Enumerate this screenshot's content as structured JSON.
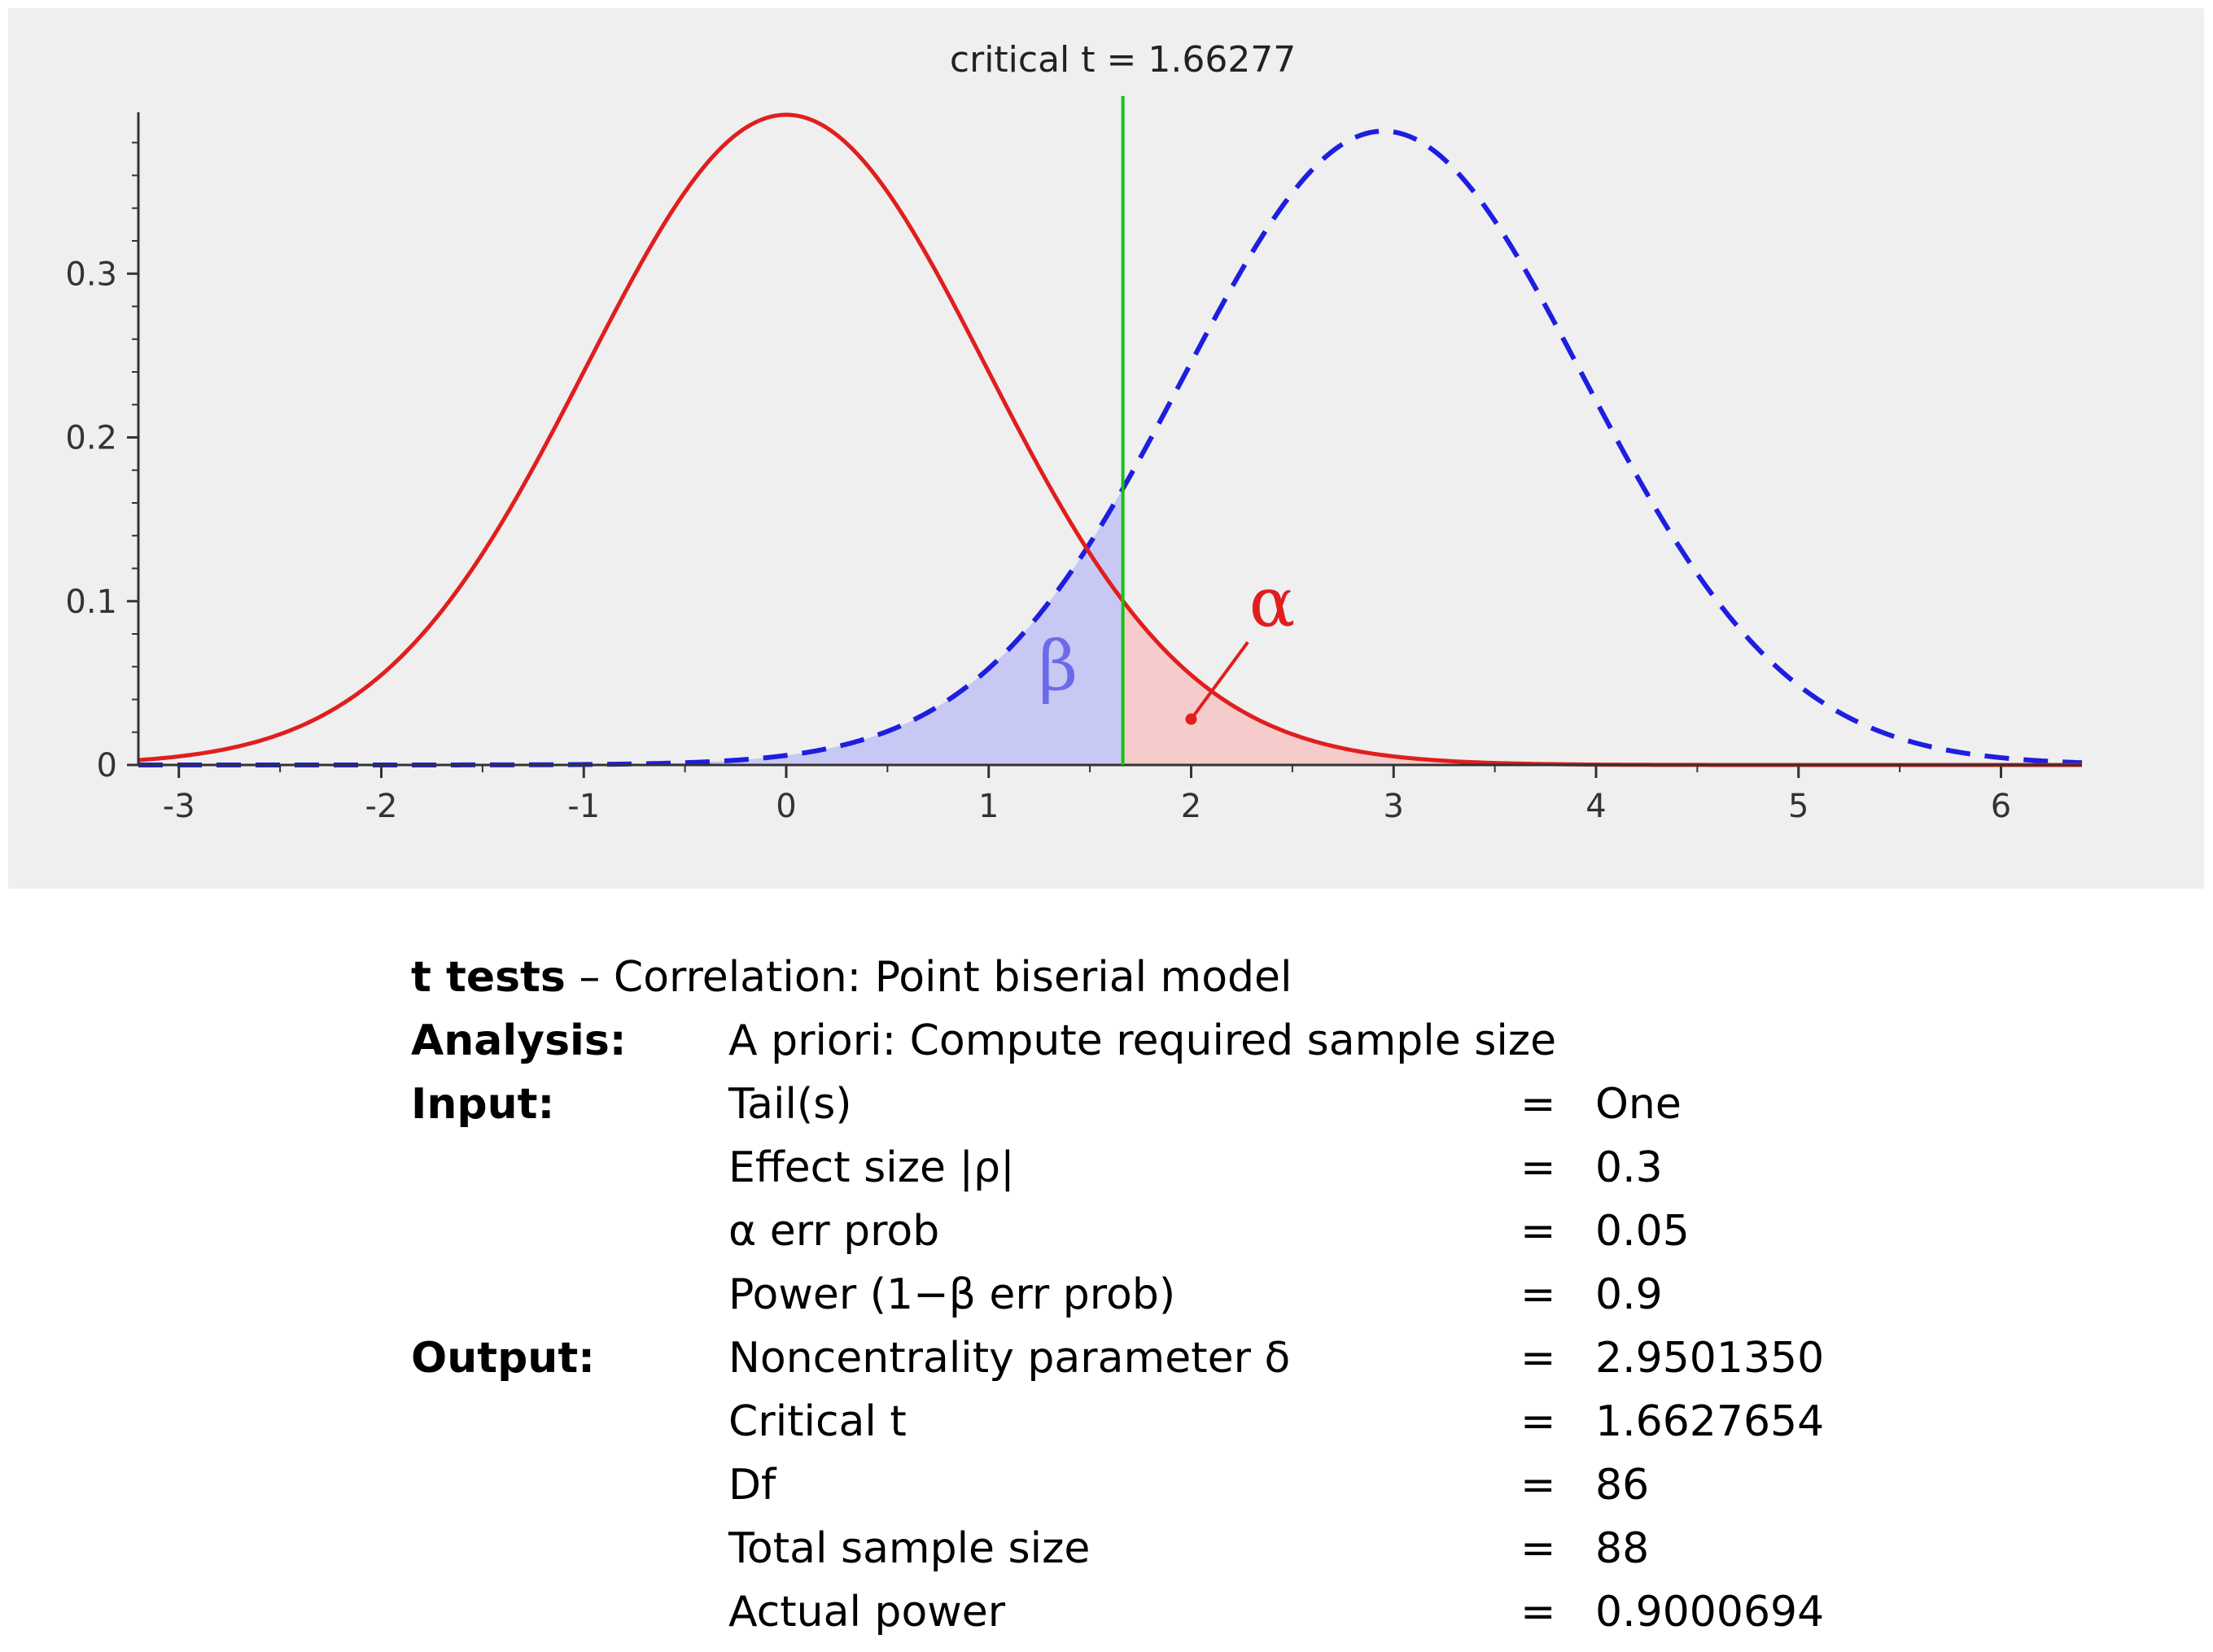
{
  "chart_data": {
    "type": "line",
    "title": "critical t = 1.66277",
    "critical_t": 1.66277,
    "noncentrality": 2.950135,
    "df": 86,
    "xlim": [
      -3.2,
      6.4
    ],
    "ylim": [
      0,
      0.4
    ],
    "x_ticks": [
      -3,
      -2,
      -1,
      0,
      1,
      2,
      3,
      4,
      5,
      6
    ],
    "y_ticks": [
      0,
      0.1,
      0.2,
      0.3
    ],
    "y_tick_labels": [
      "0",
      "0.1",
      "0.2",
      "0.3"
    ],
    "grid": false,
    "series": [
      {
        "style": "solid",
        "color": "#e01e1e",
        "center": 0,
        "peak": 0.397
      },
      {
        "style": "dashed",
        "color": "#1e1ee0",
        "center": 2.950135,
        "peak": 0.387
      }
    ],
    "areas": [
      {
        "symbol": "β",
        "color": "#6b6bea",
        "fill": "#c8c8f4"
      },
      {
        "symbol": "α",
        "color": "#e01e1e",
        "fill": "#f6cbcb"
      }
    ],
    "critical_line_color": "#17c217"
  },
  "report": {
    "title_bold": "t tests",
    "title_rest": " – Correlation: Point biserial model",
    "analysis_label": "Analysis:",
    "analysis_value": "A priori: Compute required sample size",
    "input_label": "Input:",
    "output_label": "Output:",
    "inputs": [
      {
        "label": "Tail(s)",
        "eq": "=",
        "value": "One"
      },
      {
        "label": "Effect size |ρ|",
        "eq": "=",
        "value": "0.3"
      },
      {
        "label": "α err prob",
        "eq": "=",
        "value": "0.05"
      },
      {
        "label": "Power (1−β err prob)",
        "eq": "=",
        "value": "0.9"
      }
    ],
    "outputs": [
      {
        "label": "Noncentrality parameter δ",
        "eq": "=",
        "value": "2.9501350"
      },
      {
        "label": "Critical t",
        "eq": "=",
        "value": "1.6627654"
      },
      {
        "label": "Df",
        "eq": "=",
        "value": "86"
      },
      {
        "label": "Total sample size",
        "eq": "=",
        "value": "88"
      },
      {
        "label": "Actual power",
        "eq": "=",
        "value": "0.9000694"
      }
    ]
  }
}
